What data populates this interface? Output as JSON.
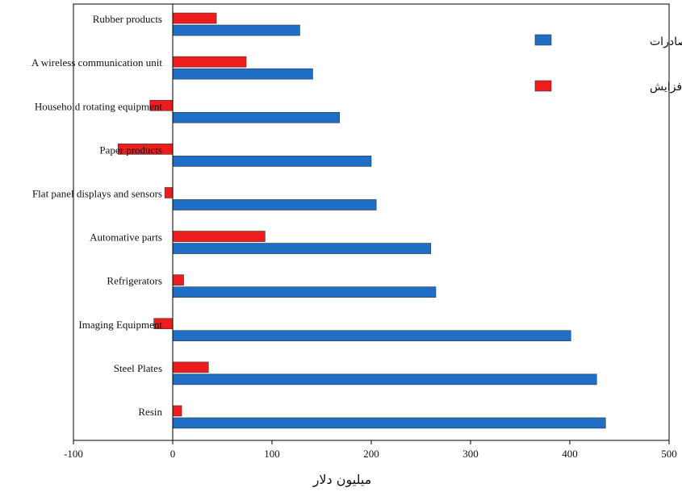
{
  "chart_data": {
    "type": "bar",
    "orientation": "horizontal",
    "categories": [
      "Rubber products",
      "A wireless communication unit",
      "Household rotating equipment",
      "Paper products",
      "Flat panel displays and sensors",
      "Automative parts",
      "Refrigerators",
      "Imaging Equipment",
      "Steel Plates",
      "Resin"
    ],
    "series": [
      {
        "name": "میزان صادرات",
        "color": "#1f6fc6",
        "values": [
          128,
          141,
          168,
          200,
          205,
          260,
          265,
          401,
          427,
          436
        ]
      },
      {
        "name": "میزان افزایش",
        "color": "#ee1c1c",
        "values": [
          44,
          74,
          -23,
          -55,
          -8,
          93,
          11,
          -19,
          36,
          9
        ]
      }
    ],
    "xlim": [
      -100,
      500
    ],
    "xticks": [
      -100,
      0,
      100,
      200,
      300,
      400,
      500
    ],
    "xlabel": "میلیون دلار",
    "legend_position": "top-right",
    "grid": false
  }
}
